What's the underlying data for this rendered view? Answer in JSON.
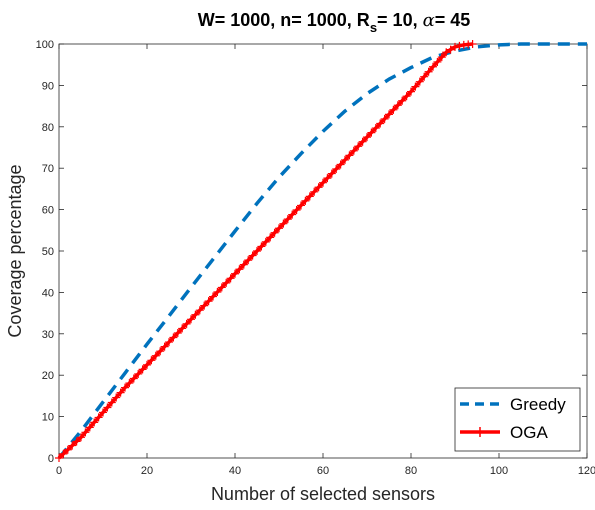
{
  "chart_data": {
    "type": "line",
    "title": {
      "prefix": "W= 1000, n= 1000, R",
      "subscript": "s",
      "mid": "= 10, ",
      "symbol": "α",
      "suffix": "= 45"
    },
    "xlabel": "Number of selected sensors",
    "ylabel": "Coverage percentage",
    "xlim": [
      0,
      120
    ],
    "ylim": [
      0,
      100
    ],
    "x_ticks": [
      0,
      20,
      40,
      60,
      80,
      100,
      120
    ],
    "y_ticks": [
      0,
      10,
      20,
      30,
      40,
      50,
      60,
      70,
      80,
      90,
      100
    ],
    "grid": false,
    "legend_position": "bottom-right",
    "series": [
      {
        "name": "Greedy",
        "color": "#0072BD",
        "style": "dashed",
        "x": [
          0,
          5,
          10,
          15,
          20,
          25,
          30,
          35,
          40,
          45,
          50,
          55,
          60,
          65,
          70,
          75,
          80,
          85,
          90,
          95,
          100,
          105,
          110,
          115,
          120
        ],
        "y": [
          0,
          6.5,
          13.5,
          20.5,
          27.5,
          34.3,
          41.2,
          48,
          54.8,
          61.5,
          67.8,
          73.5,
          78.9,
          83.8,
          88.0,
          91.5,
          94.3,
          96.8,
          98.3,
          99.3,
          99.8,
          100,
          100,
          100,
          100
        ]
      },
      {
        "name": "OGA",
        "color": "#FF0000",
        "style": "solid-marker",
        "x": [
          0,
          5,
          10,
          15,
          20,
          25,
          30,
          35,
          40,
          45,
          50,
          55,
          60,
          65,
          70,
          75,
          80,
          85,
          88,
          90,
          92,
          94
        ],
        "y": [
          0,
          5,
          11,
          17,
          22.5,
          28,
          33.5,
          39,
          44.5,
          50,
          55.5,
          61,
          66.5,
          72,
          77.5,
          83,
          88.5,
          94.5,
          98,
          99.3,
          99.8,
          100
        ]
      }
    ]
  }
}
